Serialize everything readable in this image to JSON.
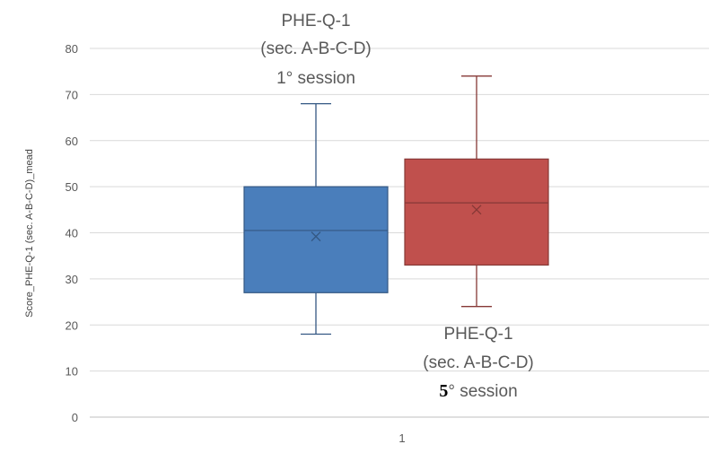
{
  "chart_data": {
    "type": "boxplot",
    "title": "",
    "xlabel": "",
    "ylabel": "Score_PHE-Q-1 (sec. A-B-C-D)_mead",
    "ylim": [
      0,
      80
    ],
    "yticks": [
      0,
      10,
      20,
      30,
      40,
      50,
      60,
      70,
      80
    ],
    "categories": [
      "1"
    ],
    "grid": true,
    "series": [
      {
        "color": "#4a7ebb",
        "whisker_low": 18,
        "q1": 27,
        "median": 40.5,
        "mean": 39.2,
        "q3": 50,
        "whisker_high": 68
      },
      {
        "color": "#c0504d",
        "whisker_low": 24,
        "q1": 33,
        "median": 46.5,
        "mean": 45,
        "q3": 56,
        "whisker_high": 74
      }
    ],
    "annotations": [
      {
        "lines": [
          "PHE-Q-1",
          "(sec. A-B-C-D)",
          "1° session"
        ]
      },
      {
        "lines": [
          "PHE-Q-1",
          "(sec. A-B-C-D)"
        ],
        "session_number": "5",
        "session_suffix": "° session"
      }
    ]
  }
}
